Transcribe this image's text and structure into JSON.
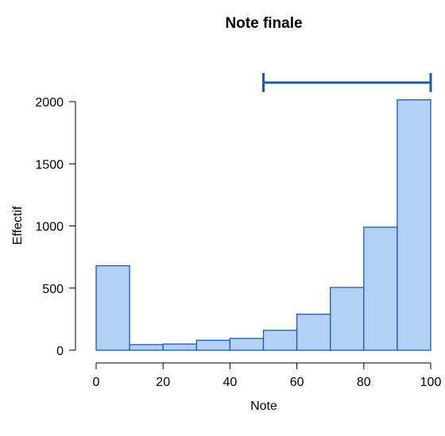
{
  "chart_data": {
    "type": "bar",
    "title": "Note finale",
    "xlabel": "Note",
    "ylabel": "Effectif",
    "bins": [
      {
        "from": 0,
        "to": 10,
        "count": 680
      },
      {
        "from": 10,
        "to": 20,
        "count": 45
      },
      {
        "from": 20,
        "to": 30,
        "count": 50
      },
      {
        "from": 30,
        "to": 40,
        "count": 80
      },
      {
        "from": 40,
        "to": 50,
        "count": 95
      },
      {
        "from": 50,
        "to": 60,
        "count": 160
      },
      {
        "from": 60,
        "to": 70,
        "count": 290
      },
      {
        "from": 70,
        "to": 80,
        "count": 505
      },
      {
        "from": 80,
        "to": 90,
        "count": 990
      },
      {
        "from": 90,
        "to": 100,
        "count": 2015
      }
    ],
    "xlim": [
      0,
      100
    ],
    "ylim": [
      0,
      2000
    ],
    "xticks": [
      0,
      20,
      40,
      60,
      80,
      100
    ],
    "yticks": [
      0,
      500,
      1000,
      1500,
      2000
    ],
    "range_marker": {
      "from": 50,
      "to": 100,
      "color": "#1f5ba8"
    },
    "bar_fill": "#b3d1f4",
    "bar_stroke": "#1f5ba8",
    "grid": false,
    "legend": "none"
  }
}
